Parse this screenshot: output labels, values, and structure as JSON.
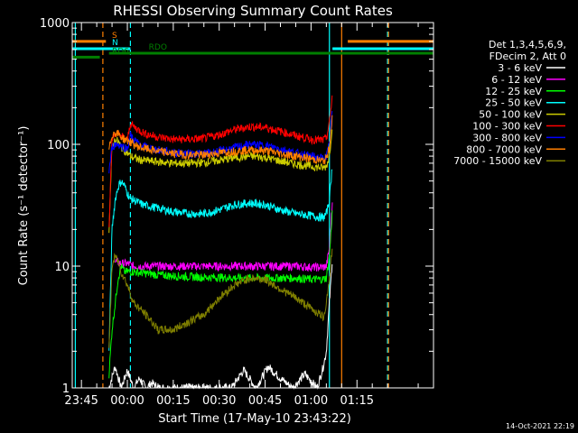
{
  "chart_data": {
    "type": "line",
    "title": "RHESSI Observing Summary Count Rates",
    "xlabel": "Start Time (17-May-10 23:43:22)",
    "ylabel": "Count Rate (s⁻¹ detector⁻¹)",
    "y_scale": "log",
    "ylim": [
      1,
      1000
    ],
    "xlim_minutes": [
      -18,
      100
    ],
    "x_ticks": [
      {
        "min": -15,
        "label": "23:45"
      },
      {
        "min": 0,
        "label": "00:00"
      },
      {
        "min": 15,
        "label": "00:15"
      },
      {
        "min": 30,
        "label": "00:30"
      },
      {
        "min": 45,
        "label": "00:45"
      },
      {
        "min": 60,
        "label": "01:00"
      },
      {
        "min": 75,
        "label": "01:15"
      }
    ],
    "y_ticks": [
      {
        "value": 1,
        "label": "1"
      },
      {
        "value": 10,
        "label": "10"
      },
      {
        "value": 100,
        "label": "100"
      },
      {
        "value": 1000,
        "label": "1000"
      }
    ],
    "legend_header": [
      "Det 1,3,4,5,6,9,",
      "FDecim 2, Att 0"
    ],
    "legend_placement": "right",
    "flag_bars": [
      {
        "label": "S",
        "color": "#ff7f00",
        "segments": [
          [
            -18,
            -7
          ],
          [
            72,
            100
          ]
        ],
        "y": 700
      },
      {
        "label": "N",
        "color": "#00ffff",
        "segments": [
          [
            -18,
            1
          ],
          [
            67,
            100
          ]
        ],
        "y": 610
      },
      {
        "label": "RDO",
        "color": "#007f00",
        "segments": [
          [
            -6,
            100
          ]
        ],
        "y": 560
      },
      {
        "label": "RD6",
        "color": "#007f00",
        "segments": [
          [
            -18,
            -9
          ]
        ],
        "y": 520
      }
    ],
    "vlines": [
      {
        "min": -17,
        "color": "#00ffff",
        "style": "solid"
      },
      {
        "min": -8,
        "color": "#ff7f00",
        "style": "dashed"
      },
      {
        "min": 1,
        "color": "#00ffff",
        "style": "dashed"
      },
      {
        "min": 66,
        "color": "#00ffff",
        "style": "solid"
      },
      {
        "min": 70,
        "color": "#ff7f00",
        "style": "solid"
      },
      {
        "min": 85,
        "color": "#00ffff",
        "style": "dashed"
      },
      {
        "min": 85.3,
        "color": "#ff7f00",
        "style": "dashed"
      }
    ],
    "series": [
      {
        "name": "3 - 6 keV",
        "color": "#ffffff",
        "x": [
          -6,
          -4,
          -2,
          0,
          2,
          4,
          6,
          8,
          10,
          34,
          38,
          42,
          46,
          50,
          54,
          58,
          62,
          64,
          65,
          66,
          67
        ],
        "y": [
          1,
          1.5,
          1,
          1.4,
          1,
          1.2,
          1,
          1.1,
          1,
          1,
          1.4,
          1,
          1.5,
          1.2,
          1,
          1.3,
          1,
          1.5,
          2,
          5,
          12
        ]
      },
      {
        "name": "6 - 12 keV",
        "color": "#ff00ff",
        "x": [
          -4,
          -2,
          0,
          2,
          5,
          10,
          15,
          20,
          25,
          30,
          35,
          40,
          45,
          50,
          55,
          60,
          64,
          65,
          66,
          67
        ],
        "y": [
          11,
          10.5,
          10.5,
          10,
          10,
          10,
          10,
          10,
          10,
          10,
          10,
          10,
          10,
          10,
          10,
          9.8,
          9.8,
          10,
          14,
          35
        ]
      },
      {
        "name": "12 - 25 keV",
        "color": "#00ff00",
        "x": [
          -6,
          -5,
          -3,
          -2,
          -1,
          0,
          2,
          5,
          10,
          15,
          20,
          25,
          30,
          35,
          40,
          45,
          50,
          55,
          60,
          64,
          65,
          66,
          67
        ],
        "y": [
          1.3,
          3,
          8,
          10,
          9,
          9,
          9,
          8.8,
          8.5,
          8.3,
          8.2,
          8.1,
          8.1,
          8,
          8,
          8,
          8,
          8,
          7.8,
          7.8,
          8,
          12,
          30
        ]
      },
      {
        "name": "25 - 50 keV",
        "color": "#00ffff",
        "x": [
          -6,
          -5,
          -4,
          -3,
          -2,
          -1,
          0,
          1,
          3,
          5,
          10,
          15,
          20,
          25,
          30,
          35,
          40,
          45,
          50,
          55,
          60,
          64,
          65,
          66,
          67
        ],
        "y": [
          2,
          20,
          35,
          45,
          50,
          46,
          40,
          36,
          34,
          32,
          30,
          28,
          27,
          27,
          29,
          32,
          33,
          32,
          29,
          27,
          26,
          25,
          27,
          35,
          70
        ]
      },
      {
        "name": "50 - 100 keV",
        "color": "#cccc00",
        "x": [
          -6,
          -5,
          -4,
          -3,
          -2,
          -1,
          0,
          1,
          3,
          5,
          10,
          15,
          20,
          25,
          30,
          35,
          40,
          45,
          50,
          55,
          60,
          64,
          65,
          66,
          67
        ],
        "y": [
          20,
          95,
          110,
          105,
          95,
          90,
          85,
          80,
          76,
          74,
          72,
          70,
          70,
          71,
          74,
          78,
          80,
          78,
          73,
          69,
          66,
          64,
          66,
          80,
          150
        ]
      },
      {
        "name": "100 - 300 keV",
        "color": "#ff0000",
        "x": [
          -6,
          -5,
          -4,
          -3,
          -2,
          -1,
          0,
          1,
          2,
          4,
          6,
          10,
          15,
          20,
          25,
          30,
          35,
          40,
          45,
          50,
          55,
          60,
          64,
          65,
          66,
          67
        ],
        "y": [
          20,
          110,
          125,
          120,
          118,
          112,
          108,
          150,
          140,
          130,
          122,
          115,
          110,
          110,
          112,
          120,
          132,
          140,
          138,
          128,
          118,
          110,
          108,
          112,
          150,
          260
        ]
      },
      {
        "name": "300 - 800 keV",
        "color": "#0000ff",
        "x": [
          -6,
          -5,
          -4,
          -3,
          -2,
          -1,
          0,
          1,
          2,
          4,
          6,
          10,
          15,
          20,
          25,
          30,
          35,
          40,
          45,
          50,
          55,
          60,
          64,
          65,
          66,
          67
        ],
        "y": [
          60,
          95,
          100,
          100,
          97,
          95,
          92,
          120,
          110,
          100,
          95,
          90,
          86,
          84,
          84,
          88,
          94,
          100,
          98,
          92,
          85,
          80,
          77,
          80,
          100,
          200
        ]
      },
      {
        "name": "800 - 7000 keV",
        "color": "#ff7f00",
        "x": [
          -6,
          -5,
          -4,
          -3,
          -2,
          -1,
          0,
          1,
          2,
          4,
          6,
          10,
          15,
          20,
          25,
          30,
          35,
          40,
          45,
          50,
          55,
          60,
          64,
          65,
          66,
          67
        ],
        "y": [
          90,
          120,
          125,
          122,
          115,
          110,
          108,
          105,
          100,
          95,
          92,
          88,
          84,
          82,
          82,
          85,
          88,
          90,
          89,
          84,
          80,
          76,
          73,
          76,
          95,
          180
        ]
      },
      {
        "name": "7000 - 15000 keV",
        "color": "#7f7f00",
        "x": [
          -6,
          -5,
          -4,
          -3,
          -2,
          -1,
          0,
          1,
          2,
          4,
          6,
          8,
          10,
          13,
          15,
          20,
          25,
          30,
          35,
          40,
          45,
          50,
          55,
          60,
          63,
          64,
          65,
          66,
          67
        ],
        "y": [
          2,
          10,
          12,
          11,
          9,
          8,
          7,
          6,
          5,
          4.5,
          4,
          3.5,
          3,
          3,
          3,
          3.5,
          4,
          5.5,
          7,
          8,
          7.8,
          6.5,
          5.5,
          4.5,
          4,
          3.8,
          5,
          8,
          15
        ]
      }
    ]
  },
  "footer": {
    "date_stamp": "14-Oct-2021 22:19"
  }
}
